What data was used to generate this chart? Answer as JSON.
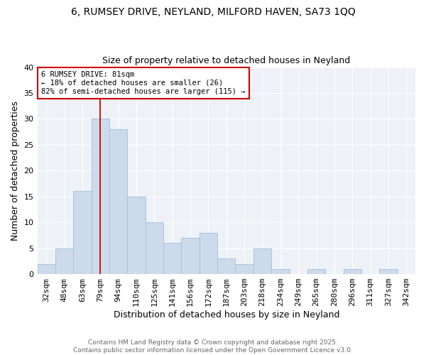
{
  "title_line1": "6, RUMSEY DRIVE, NEYLAND, MILFORD HAVEN, SA73 1QQ",
  "title_line2": "Size of property relative to detached houses in Neyland",
  "xlabel": "Distribution of detached houses by size in Neyland",
  "ylabel": "Number of detached properties",
  "bins": [
    "32sqm",
    "48sqm",
    "63sqm",
    "79sqm",
    "94sqm",
    "110sqm",
    "125sqm",
    "141sqm",
    "156sqm",
    "172sqm",
    "187sqm",
    "203sqm",
    "218sqm",
    "234sqm",
    "249sqm",
    "265sqm",
    "280sqm",
    "296sqm",
    "311sqm",
    "327sqm",
    "342sqm"
  ],
  "values": [
    2,
    5,
    16,
    30,
    28,
    15,
    10,
    6,
    7,
    8,
    3,
    2,
    5,
    1,
    0,
    1,
    0,
    1,
    0,
    1,
    0
  ],
  "bar_color": "#ccdaeb",
  "bar_edge_color": "#a8c4de",
  "vline_x_index": 3,
  "vline_color": "#cc0000",
  "annotation_text": "6 RUMSEY DRIVE: 81sqm\n← 18% of detached houses are smaller (26)\n82% of semi-detached houses are larger (115) →",
  "annotation_box_facecolor": "#ffffff",
  "annotation_box_edgecolor": "#cc0000",
  "ylim": [
    0,
    40
  ],
  "yticks": [
    0,
    5,
    10,
    15,
    20,
    25,
    30,
    35,
    40
  ],
  "footer": "Contains HM Land Registry data © Crown copyright and database right 2025.\nContains public sector information licensed under the Open Government Licence v3.0.",
  "background_color": "#ffffff",
  "plot_background_color": "#eef2f7",
  "grid_color": "#ffffff",
  "title_fontsize": 10,
  "subtitle_fontsize": 9,
  "xlabel_fontsize": 9,
  "ylabel_fontsize": 9,
  "tick_fontsize": 8,
  "annot_fontsize": 7.5,
  "footer_fontsize": 6.5
}
